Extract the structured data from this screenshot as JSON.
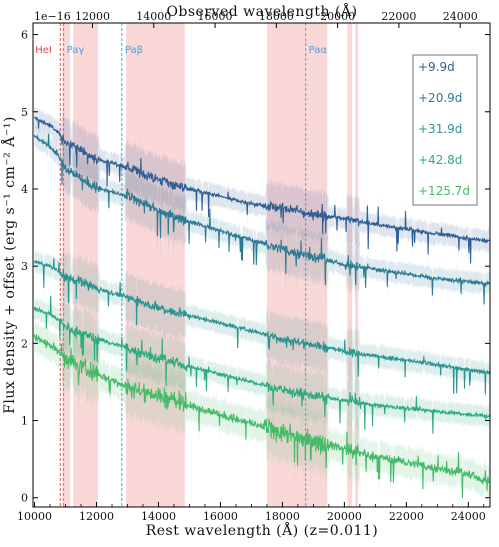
{
  "chart_data": {
    "type": "line",
    "title": "",
    "top_xlabel": "Observed wavelength (Å)",
    "xlabel": "Rest wavelength (Å) (z=0.011)",
    "ylabel": "Flux density + offset (erg s⁻¹ cm⁻² Å⁻¹)",
    "scale_note": "1e−16",
    "xlim": [
      9950,
      24700
    ],
    "ylim": [
      -0.12,
      6.15
    ],
    "bottom_ticks": [
      10000,
      12000,
      14000,
      16000,
      18000,
      20000,
      22000,
      24000
    ],
    "bottom_tick_labels": [
      "10000",
      "12000",
      "14000",
      "16000",
      "18000",
      "20000",
      "22000",
      "24000"
    ],
    "top_ticks": [
      12000,
      14000,
      16000,
      18000,
      20000,
      22000,
      24000
    ],
    "top_tick_labels": [
      "12000",
      "14000",
      "16000",
      "18000",
      "20000",
      "22000",
      "24000"
    ],
    "y_ticks": [
      0,
      1,
      2,
      3,
      4,
      5,
      6
    ],
    "y_tick_labels": [
      "0",
      "1",
      "2",
      "3",
      "4",
      "5",
      "6"
    ],
    "telluric_bands": [
      [
        10900,
        11150
      ],
      [
        11250,
        12050
      ],
      [
        12950,
        14850
      ],
      [
        17500,
        19450
      ],
      [
        20100,
        20250
      ],
      [
        20350,
        20450
      ]
    ],
    "line_markers": [
      {
        "name": "HeI",
        "rest": 10830,
        "color": "#e8483c"
      },
      {
        "name": "Paγ",
        "rest": 10938,
        "color": "#4aa3df"
      },
      {
        "name": "Paβ",
        "rest": 12818,
        "color": "#4aa3df"
      },
      {
        "name": "Paα",
        "rest": 18751,
        "color": "#4aa3df"
      }
    ],
    "legend_position": "top-right",
    "grid": false,
    "series": [
      {
        "name": "+9.9d",
        "color": "#2f5f94",
        "x": [
          10000,
          10500,
          10800,
          11000,
          11500,
          12000,
          12500,
          13000,
          13500,
          14000,
          15000,
          16000,
          17000,
          18000,
          19000,
          20000,
          21000,
          22000,
          23000,
          24000,
          24600
        ],
        "y": [
          4.92,
          4.82,
          4.72,
          4.6,
          4.5,
          4.38,
          4.34,
          4.28,
          4.2,
          4.12,
          4.0,
          3.9,
          3.81,
          3.75,
          3.67,
          3.62,
          3.54,
          3.48,
          3.42,
          3.36,
          3.33
        ]
      },
      {
        "name": "+20.9d",
        "color": "#2e7a94",
        "x": [
          10000,
          10500,
          10800,
          11000,
          11500,
          12000,
          12500,
          13000,
          13500,
          14000,
          15000,
          16000,
          17000,
          18000,
          19000,
          20000,
          21000,
          22000,
          23000,
          24000,
          24600
        ],
        "y": [
          4.68,
          4.55,
          4.42,
          4.28,
          4.14,
          4.02,
          3.96,
          3.9,
          3.82,
          3.72,
          3.58,
          3.46,
          3.34,
          3.22,
          3.12,
          3.02,
          2.96,
          2.9,
          2.84,
          2.8,
          2.77
        ]
      },
      {
        "name": "+31.9d",
        "color": "#2a9490",
        "x": [
          10000,
          10500,
          10800,
          11000,
          11500,
          12000,
          12500,
          13000,
          13500,
          14000,
          15000,
          16000,
          17000,
          18000,
          19000,
          20000,
          21000,
          22000,
          23000,
          24000,
          24600
        ],
        "y": [
          3.06,
          3.0,
          2.92,
          2.86,
          2.8,
          2.72,
          2.65,
          2.6,
          2.53,
          2.46,
          2.36,
          2.26,
          2.16,
          2.06,
          1.98,
          1.9,
          1.84,
          1.78,
          1.72,
          1.66,
          1.63
        ]
      },
      {
        "name": "+42.8d",
        "color": "#2eab7e",
        "x": [
          10000,
          10500,
          10800,
          11000,
          11500,
          12000,
          12500,
          13000,
          13500,
          14000,
          15000,
          16000,
          17000,
          18000,
          19000,
          20000,
          21000,
          22000,
          23000,
          24000,
          24600
        ],
        "y": [
          2.45,
          2.38,
          2.3,
          2.22,
          2.14,
          2.06,
          2.0,
          1.94,
          1.87,
          1.8,
          1.7,
          1.6,
          1.5,
          1.4,
          1.32,
          1.26,
          1.2,
          1.16,
          1.12,
          1.08,
          1.06
        ]
      },
      {
        "name": "+125.7d",
        "color": "#45bb6a",
        "x": [
          10000,
          10500,
          10800,
          11000,
          11500,
          12000,
          12500,
          13000,
          13500,
          14000,
          15000,
          16000,
          17000,
          18000,
          19000,
          20000,
          21000,
          22000,
          23000,
          24000,
          24600
        ],
        "y": [
          2.08,
          1.98,
          1.88,
          1.8,
          1.7,
          1.6,
          1.52,
          1.45,
          1.38,
          1.32,
          1.2,
          1.08,
          0.96,
          0.84,
          0.74,
          0.64,
          0.54,
          0.46,
          0.38,
          0.3,
          0.22
        ]
      }
    ]
  }
}
